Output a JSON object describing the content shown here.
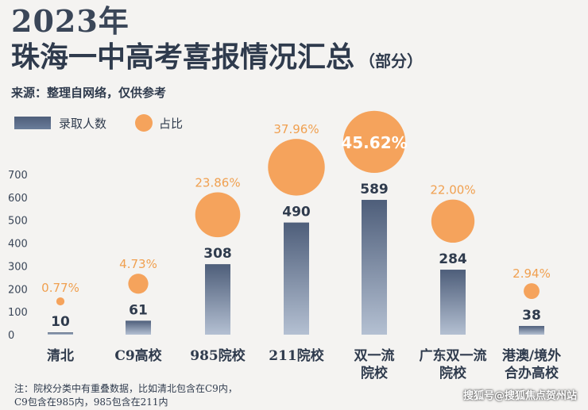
{
  "header": {
    "year": "2023年",
    "title": "珠海一中高考喜报情况汇总",
    "suffix": "（部分）",
    "source": "来源：整理自网络，仅供参考"
  },
  "legend": {
    "bar_label": "录取人数",
    "dot_label": "占比"
  },
  "chart_data": {
    "type": "bar",
    "categories": [
      "清北",
      "C9高校",
      "985院校",
      "211院校",
      "双一流院校",
      "广东双一流院校",
      "港澳/境外合办高校"
    ],
    "category_lines": [
      [
        "清北"
      ],
      [
        "C9高校"
      ],
      [
        "985院校"
      ],
      [
        "211院校"
      ],
      [
        "双一流",
        "院校"
      ],
      [
        "广东双一流",
        "院校"
      ],
      [
        "港澳/境外",
        "合办高校"
      ]
    ],
    "series": [
      {
        "name": "录取人数",
        "values": [
          10,
          61,
          308,
          490,
          589,
          284,
          38
        ]
      },
      {
        "name": "占比",
        "values": [
          "0.77%",
          "4.73%",
          "23.86%",
          "37.96%",
          "45.62%",
          "22.00%",
          "2.94%"
        ]
      }
    ],
    "percent_values": [
      0.77,
      4.73,
      23.86,
      37.96,
      45.62,
      22.0,
      2.94
    ],
    "yticks": [
      0,
      100,
      200,
      300,
      400,
      500,
      600,
      700
    ],
    "ylim": [
      0,
      700
    ]
  },
  "colors": {
    "bar_dark": "#4e5e7a",
    "bar_light": "#b4c0d2",
    "dot": "#f5a35c",
    "percent_text": "#f0a050",
    "text": "#2f3b4d"
  },
  "notes": [
    "注：院校分类中有重叠数据，比如清北包含在C9内，",
    "C9包含在985内，985包含在211内"
  ],
  "watermark": "搜狐号@搜狐焦点贺州站"
}
